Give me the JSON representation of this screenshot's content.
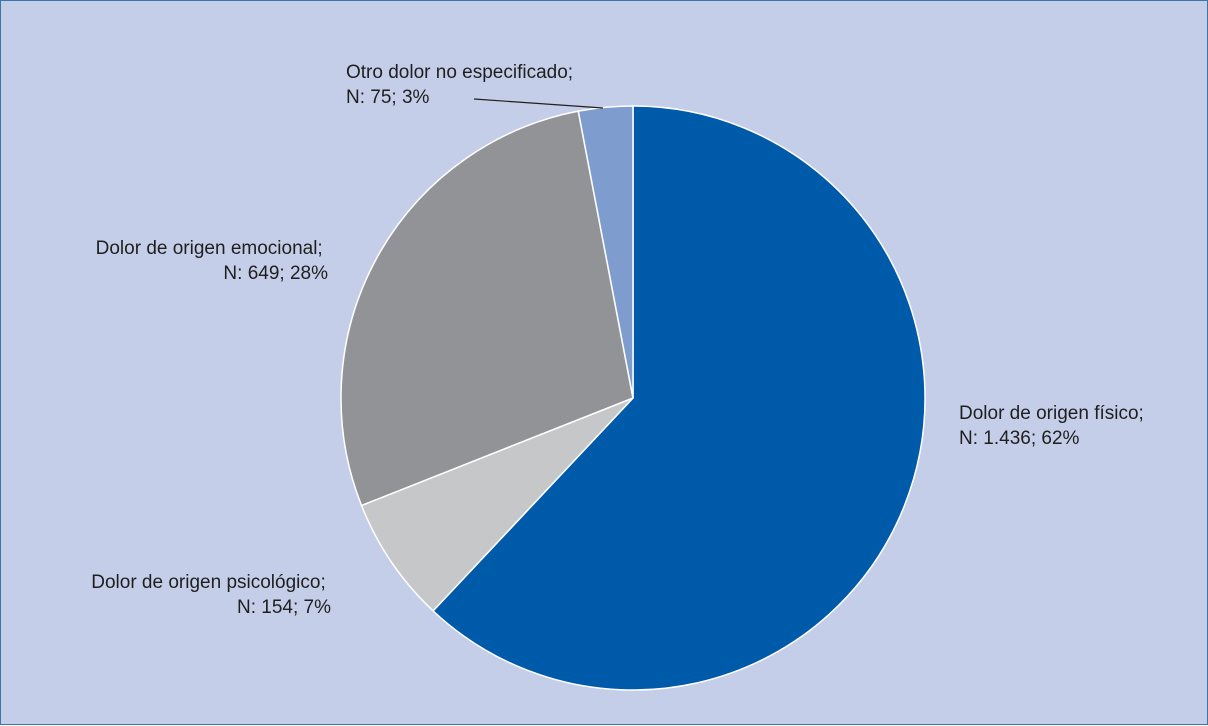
{
  "chart_data": {
    "type": "pie",
    "title": "",
    "slices": [
      {
        "name": "Dolor de origen físico",
        "n": "1.436",
        "percent": 62,
        "label_line1": "Dolor de origen físico;",
        "label_line2": "N: 1.436; 62%",
        "color": "#005aaa"
      },
      {
        "name": "Dolor de origen psicológico",
        "n": "154",
        "percent": 7,
        "label_line1": "Dolor de origen psicológico;",
        "label_line2": "N: 154; 7%",
        "color": "#c6c7c9"
      },
      {
        "name": "Dolor de origen emocional",
        "n": "649",
        "percent": 28,
        "label_line1": "Dolor de origen emocional;",
        "label_line2": "N: 649; 28%",
        "color": "#929396"
      },
      {
        "name": "Otro dolor no especificado",
        "n": "75",
        "percent": 3,
        "label_line1": "Otro dolor no especificado;",
        "label_line2": "N: 75; 3%",
        "color": "#7f9ccf"
      }
    ],
    "start_angle": "12 o'clock",
    "direction": "clockwise",
    "legend": "none"
  },
  "colors": {
    "background": "#c5cee8",
    "border": "#3b76a8",
    "leader_line": "#1f1f1f"
  }
}
